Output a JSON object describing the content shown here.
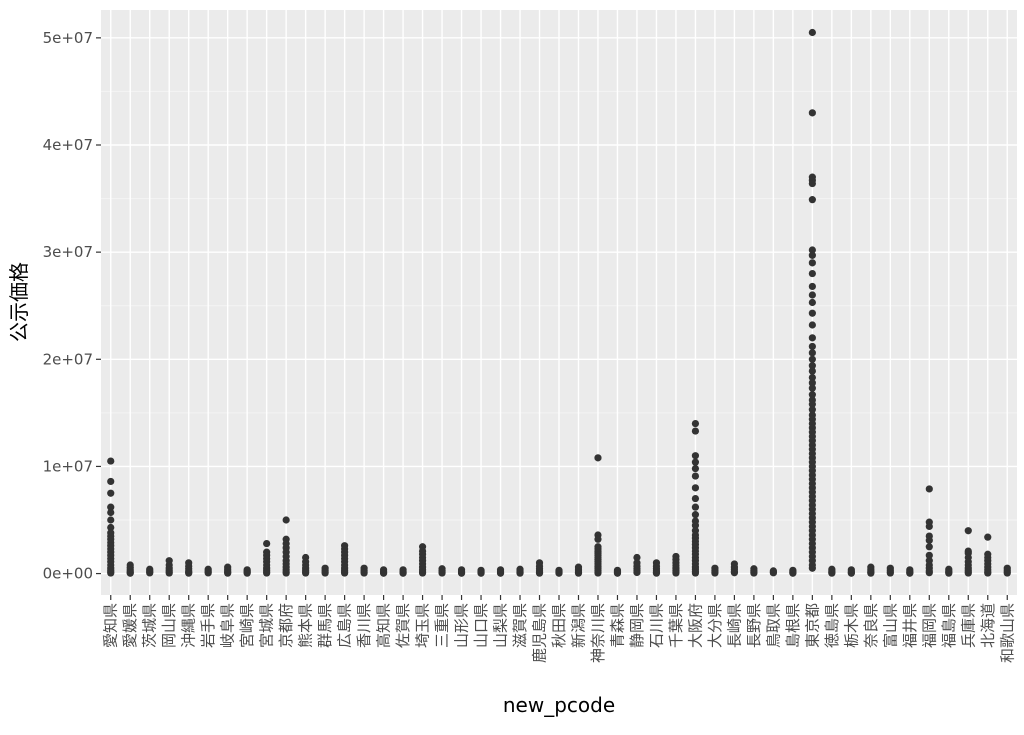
{
  "chart_data": {
    "type": "scatter",
    "title": "",
    "xlabel": "new_pcode",
    "ylabel": "公示価格",
    "ylim": [
      -2000000,
      52600000
    ],
    "yticks": [
      0,
      10000000,
      20000000,
      30000000,
      40000000,
      50000000
    ],
    "ytick_labels": [
      "0e+00",
      "1e+07",
      "2e+07",
      "3e+07",
      "4e+07",
      "5e+07"
    ],
    "grid": true,
    "legend": "none",
    "colors": {
      "panel": "#ebebeb",
      "grid_major": "#ffffff",
      "grid_minor": "#f4f4f4",
      "point": "#333333",
      "text": "#4d4d4d",
      "title": "#000000"
    },
    "categories": [
      "愛知県",
      "愛媛県",
      "茨城県",
      "岡山県",
      "沖縄県",
      "岩手県",
      "岐阜県",
      "宮崎県",
      "宮城県",
      "京都府",
      "熊本県",
      "群馬県",
      "広島県",
      "香川県",
      "高知県",
      "佐賀県",
      "埼玉県",
      "三重県",
      "山形県",
      "山口県",
      "山梨県",
      "滋賀県",
      "鹿児島県",
      "秋田県",
      "新潟県",
      "神奈川県",
      "青森県",
      "静岡県",
      "石川県",
      "千葉県",
      "大阪府",
      "大分県",
      "長崎県",
      "長野県",
      "鳥取県",
      "島根県",
      "東京都",
      "徳島県",
      "栃木県",
      "奈良県",
      "富山県",
      "福井県",
      "福岡県",
      "福島県",
      "兵庫県",
      "北海道",
      "和歌山県"
    ],
    "points_by_category": [
      [
        10500000,
        8600000,
        7500000,
        6200000,
        5700000,
        5000000,
        4300000,
        3800000,
        3500000,
        3200000,
        2900000,
        2600000,
        2300000,
        2000000,
        1700000,
        1400000,
        1100000,
        800000,
        500000,
        300000,
        150000,
        50000
      ],
      [
        800000,
        550000,
        350000,
        200000,
        100000,
        30000
      ],
      [
        400000,
        250000,
        150000,
        60000
      ],
      [
        1200000,
        800000,
        500000,
        300000,
        150000,
        50000
      ],
      [
        1000000,
        700000,
        450000,
        250000,
        120000,
        40000
      ],
      [
        400000,
        250000,
        150000,
        60000
      ],
      [
        600000,
        400000,
        250000,
        120000,
        40000
      ],
      [
        350000,
        220000,
        120000,
        40000
      ],
      [
        2800000,
        2000000,
        1700000,
        1400000,
        1100000,
        800000,
        500000,
        300000,
        150000,
        50000
      ],
      [
        5000000,
        3200000,
        2800000,
        2400000,
        2000000,
        1600000,
        1200000,
        900000,
        600000,
        350000,
        150000,
        50000
      ],
      [
        1500000,
        1100000,
        800000,
        500000,
        300000,
        150000,
        50000
      ],
      [
        500000,
        300000,
        150000,
        50000
      ],
      [
        2600000,
        2300000,
        2000000,
        1700000,
        1400000,
        1100000,
        800000,
        500000,
        300000,
        150000,
        50000
      ],
      [
        500000,
        300000,
        150000,
        50000
      ],
      [
        350000,
        200000,
        100000,
        30000
      ],
      [
        350000,
        200000,
        100000,
        30000
      ],
      [
        2500000,
        2100000,
        1800000,
        1500000,
        1200000,
        900000,
        600000,
        350000,
        150000,
        50000
      ],
      [
        450000,
        280000,
        150000,
        50000
      ],
      [
        350000,
        200000,
        100000,
        30000
      ],
      [
        300000,
        180000,
        90000,
        30000
      ],
      [
        350000,
        200000,
        100000,
        30000
      ],
      [
        400000,
        250000,
        130000,
        40000
      ],
      [
        1000000,
        700000,
        450000,
        250000,
        120000,
        40000
      ],
      [
        300000,
        180000,
        90000,
        30000
      ],
      [
        600000,
        400000,
        250000,
        120000,
        40000
      ],
      [
        10800000,
        3600000,
        3200000,
        2500000,
        2300000,
        2100000,
        1900000,
        1700000,
        1500000,
        1300000,
        1100000,
        900000,
        700000,
        500000,
        300000,
        150000,
        50000
      ],
      [
        300000,
        180000,
        90000,
        30000
      ],
      [
        1500000,
        1000000,
        700000,
        450000,
        250000,
        100000
      ],
      [
        1000000,
        700000,
        450000,
        250000,
        120000,
        40000
      ],
      [
        1600000,
        1300000,
        1000000,
        750000,
        500000,
        300000,
        150000,
        50000
      ],
      [
        14000000,
        13300000,
        11000000,
        10400000,
        9800000,
        9100000,
        8000000,
        7000000,
        6200000,
        5500000,
        4900000,
        4500000,
        4000000,
        3600000,
        3300000,
        3000000,
        2700000,
        2400000,
        2100000,
        1800000,
        1500000,
        1200000,
        900000,
        600000,
        400000,
        200000,
        50000
      ],
      [
        500000,
        300000,
        150000,
        50000
      ],
      [
        900000,
        600000,
        400000,
        200000,
        80000
      ],
      [
        450000,
        280000,
        150000,
        50000
      ],
      [
        250000,
        150000,
        70000
      ],
      [
        300000,
        180000,
        90000,
        30000
      ],
      [
        50500000,
        43000000,
        37000000,
        36700000,
        36400000,
        34900000,
        30200000,
        29700000,
        29000000,
        28000000,
        26800000,
        26000000,
        25300000,
        24300000,
        23200000,
        22000000,
        21200000,
        20600000,
        20000000,
        19400000,
        18900000,
        18300000,
        17800000,
        17300000,
        16700000,
        16200000,
        15800000,
        15300000,
        14800000,
        14400000,
        14000000,
        13600000,
        13200000,
        12800000,
        12400000,
        12000000,
        11600000,
        11200000,
        10800000,
        10400000,
        10000000,
        9600000,
        9200000,
        8800000,
        8400000,
        8000000,
        7600000,
        7200000,
        6800000,
        6400000,
        6000000,
        5600000,
        5200000,
        4800000,
        4400000,
        4000000,
        3600000,
        3200000,
        2800000,
        2400000,
        2000000,
        1600000,
        1200000,
        800000,
        500000
      ],
      [
        400000,
        250000,
        130000,
        40000
      ],
      [
        350000,
        200000,
        100000,
        30000
      ],
      [
        600000,
        400000,
        250000,
        120000,
        40000
      ],
      [
        500000,
        300000,
        150000,
        50000
      ],
      [
        350000,
        200000,
        100000,
        30000
      ],
      [
        7900000,
        4800000,
        4400000,
        3500000,
        3100000,
        2500000,
        1700000,
        1200000,
        800000,
        500000,
        250000,
        80000
      ],
      [
        400000,
        250000,
        130000,
        40000
      ],
      [
        4000000,
        2100000,
        1900000,
        1500000,
        1100000,
        800000,
        500000,
        300000,
        150000,
        50000
      ],
      [
        3400000,
        1800000,
        1500000,
        1200000,
        900000,
        600000,
        350000,
        150000,
        50000
      ],
      [
        500000,
        300000,
        150000,
        50000
      ]
    ]
  }
}
